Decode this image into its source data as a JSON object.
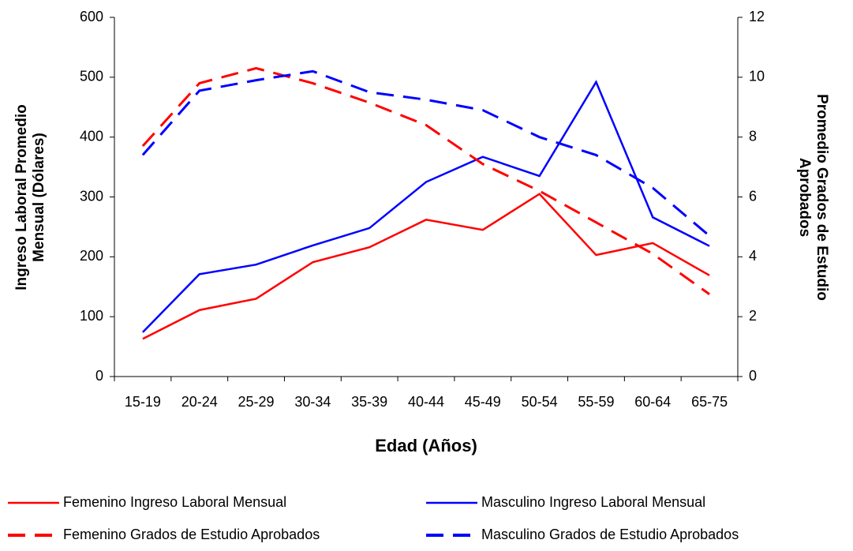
{
  "chart_data": {
    "type": "line",
    "xlabel": "Edad (Años)",
    "ylabel": [
      "Ingreso Laboral Promedio",
      "Mensual (Dólares)"
    ],
    "y2label": [
      "Promedio Grados de Estudio",
      "Aprobados"
    ],
    "categories": [
      "15-19",
      "20-24",
      "25-29",
      "30-34",
      "35-39",
      "40-44",
      "45-49",
      "50-54",
      "55-59",
      "60-64",
      "65-75"
    ],
    "ylim": [
      0,
      600
    ],
    "yticks": [
      0,
      100,
      200,
      300,
      400,
      500,
      600
    ],
    "y2lim": [
      0,
      12
    ],
    "y2ticks": [
      0,
      2,
      4,
      6,
      8,
      10,
      12
    ],
    "series": [
      {
        "name": "Femenino Ingreso Laboral Mensual",
        "color": "#ff0000",
        "dashed": false,
        "values": [
          63,
          111,
          130,
          191,
          216,
          262,
          245,
          305,
          203,
          223,
          169
        ]
      },
      {
        "name": "Masculino Ingreso Laboral Mensual",
        "color": "#0000ff",
        "dashed": false,
        "values": [
          74,
          171,
          187,
          219,
          248,
          325,
          367,
          335,
          492,
          266,
          218
        ]
      },
      {
        "name": "Femenino Grados de Estudio Aprobados",
        "color": "#ff0000",
        "dashed": true,
        "axis": "y2",
        "values": [
          7.7,
          9.8,
          10.3,
          9.8,
          9.15,
          8.4,
          7.1,
          6.2,
          5.15,
          4.1,
          2.75
        ]
      },
      {
        "name": "Masculino Grados de Estudio Aprobados",
        "color": "#0000ff",
        "dashed": true,
        "axis": "y2",
        "values": [
          7.4,
          9.55,
          9.9,
          10.2,
          9.5,
          9.25,
          8.9,
          8.0,
          7.4,
          6.3,
          4.7
        ]
      }
    ]
  }
}
